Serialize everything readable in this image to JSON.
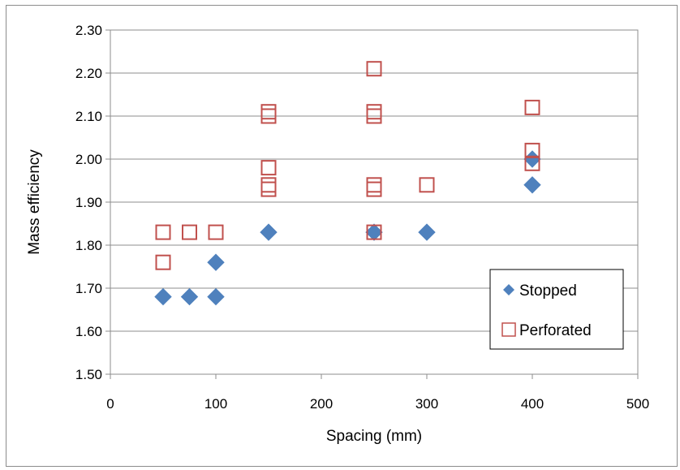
{
  "chart_data": {
    "type": "scatter",
    "title": "",
    "xlabel": "Spacing (mm)",
    "ylabel": "Mass efficiency",
    "xlim": [
      0,
      500
    ],
    "ylim": [
      1.5,
      2.3
    ],
    "x_ticks": [
      0,
      100,
      200,
      300,
      400,
      500
    ],
    "y_ticks": [
      1.5,
      1.6,
      1.7,
      1.8,
      1.9,
      2.0,
      2.1,
      2.2,
      2.3
    ],
    "x_tick_labels": [
      "0",
      "100",
      "200",
      "300",
      "400",
      "500"
    ],
    "y_tick_labels": [
      "1.50",
      "1.60",
      "1.70",
      "1.80",
      "1.90",
      "2.00",
      "2.10",
      "2.20",
      "2.30"
    ],
    "grid": "horizontal",
    "legend_position": "bottom-right",
    "series": [
      {
        "name": "Stopped",
        "marker": "diamond",
        "color": "#4f81bd",
        "points": [
          {
            "x": 50,
            "y": 1.68
          },
          {
            "x": 75,
            "y": 1.68
          },
          {
            "x": 100,
            "y": 1.68
          },
          {
            "x": 100,
            "y": 1.76
          },
          {
            "x": 150,
            "y": 1.83
          },
          {
            "x": 250,
            "y": 1.83
          },
          {
            "x": 300,
            "y": 1.83
          },
          {
            "x": 400,
            "y": 1.94
          },
          {
            "x": 400,
            "y": 2.0
          }
        ]
      },
      {
        "name": "Perforated",
        "marker": "square-open",
        "color": "#c0504d",
        "points": [
          {
            "x": 50,
            "y": 1.76
          },
          {
            "x": 50,
            "y": 1.83
          },
          {
            "x": 75,
            "y": 1.83
          },
          {
            "x": 100,
            "y": 1.83
          },
          {
            "x": 150,
            "y": 1.93
          },
          {
            "x": 150,
            "y": 1.94
          },
          {
            "x": 150,
            "y": 1.98
          },
          {
            "x": 150,
            "y": 2.1
          },
          {
            "x": 150,
            "y": 2.11
          },
          {
            "x": 250,
            "y": 1.83
          },
          {
            "x": 250,
            "y": 1.93
          },
          {
            "x": 250,
            "y": 1.94
          },
          {
            "x": 250,
            "y": 2.1
          },
          {
            "x": 250,
            "y": 2.11
          },
          {
            "x": 250,
            "y": 2.21
          },
          {
            "x": 300,
            "y": 1.94
          },
          {
            "x": 400,
            "y": 1.99
          },
          {
            "x": 400,
            "y": 2.02
          },
          {
            "x": 400,
            "y": 2.12
          }
        ]
      }
    ]
  }
}
